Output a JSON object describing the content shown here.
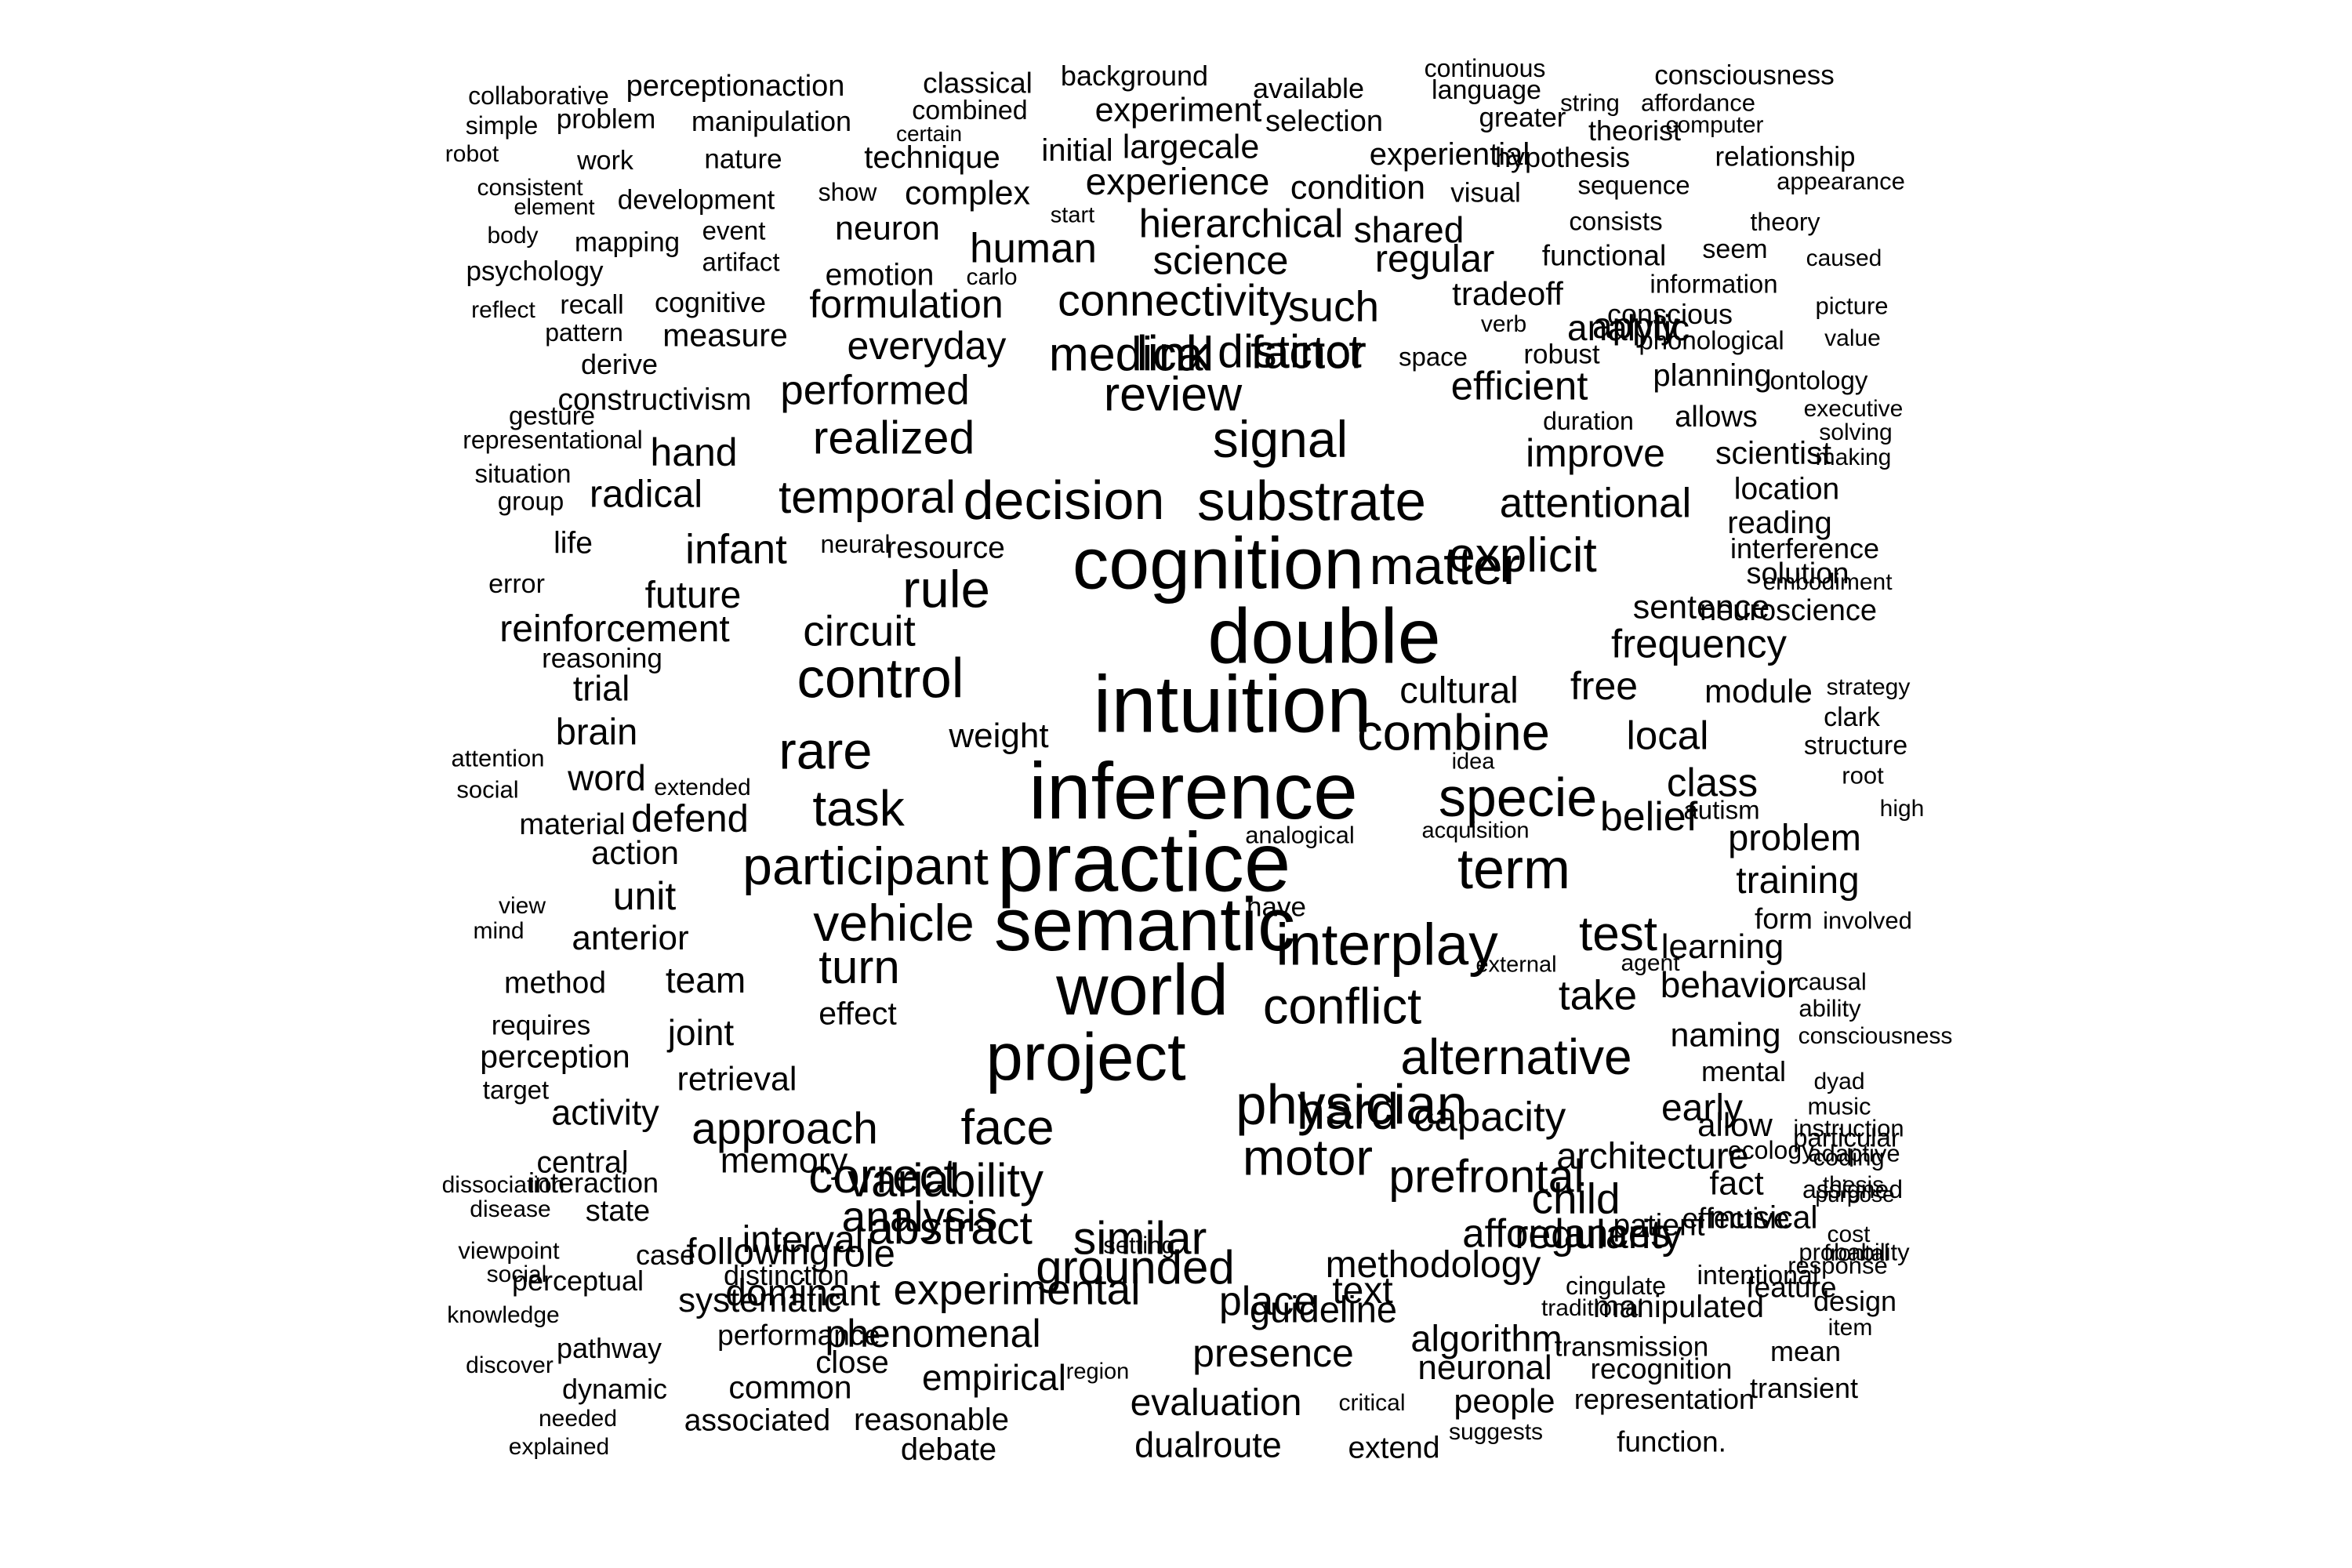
{
  "words": [
    "collaborative",
    "perceptionaction",
    "classical",
    "background",
    "available",
    "continuous",
    "consciousness",
    "simple",
    "problem",
    "manipulation",
    "combined",
    "experiment",
    "selection",
    "language",
    "string",
    "affordance",
    "certain",
    "greater",
    "theorist",
    "computer",
    "robot",
    "work",
    "nature",
    "technique",
    "initial",
    "largecale",
    "experiential",
    "hypothesis",
    "relationship",
    "consistent",
    "show",
    "complex",
    "experience",
    "condition",
    "visual",
    "sequence",
    "appearance",
    "element",
    "development",
    "body",
    "mapping",
    "event",
    "neuron",
    "start",
    "hierarchical",
    "shared",
    "consists",
    "theory",
    "human",
    "science",
    "regular",
    "functional",
    "seem",
    "caused",
    "psychology",
    "artifact",
    "emotion",
    "carlo",
    "information",
    "reflect",
    "recall",
    "cognitive",
    "formulation",
    "connectivity",
    "such",
    "tradeoff",
    "conscious",
    "picture",
    "pattern",
    "measure",
    "everyday",
    "link",
    "factor",
    "verb",
    "analytic",
    "apply",
    "phonological",
    "value",
    "derive",
    "medical",
    "distinct",
    "space",
    "robust",
    "planning",
    "ontology",
    "constructivism",
    "performed",
    "review",
    "efficient",
    "duration",
    "allows",
    "executive",
    "gesture",
    "representational",
    "realized",
    "signal",
    "solving",
    "hand",
    "improve",
    "scientist",
    "making",
    "situation",
    "group",
    "radical",
    "temporal",
    "decision",
    "substrate",
    "attentional",
    "location",
    "reading",
    "life",
    "infant",
    "neural",
    "resource",
    "rule",
    "cognition",
    "matter",
    "explicit",
    "interference",
    "error",
    "future",
    "solution",
    "embodiment",
    "reinforcement",
    "circuit",
    "double",
    "sentence",
    "neuroscience",
    "reasoning",
    "frequency",
    "trial",
    "control",
    "cultural",
    "free",
    "module",
    "strategy",
    "brain",
    "intuition",
    "combine",
    "local",
    "clark",
    "weight",
    "structure",
    "attention",
    "rare",
    "idea",
    "social",
    "extended",
    "word",
    "inference",
    "specie",
    "class",
    "root",
    "task",
    "defend",
    "belief",
    "autism",
    "high",
    "material",
    "analogical",
    "acquisition",
    "problem",
    "action",
    "participant",
    "practice",
    "term",
    "training",
    "view",
    "unit",
    "have",
    "form",
    "involved",
    "mind",
    "vehicle",
    "semantic",
    "test",
    "anterior",
    "external",
    "agent",
    "learning",
    "interplay",
    "turn",
    "method",
    "team",
    "world",
    "take",
    "behavior",
    "causal",
    "effect",
    "conflict",
    "ability",
    "requires",
    "joint",
    "naming",
    "consciousness",
    "perception",
    "project",
    "alternative",
    "mental",
    "target",
    "dyad",
    "retrieval",
    "physician",
    "music",
    "instruction",
    "activity",
    "approach",
    "hard",
    "allow",
    "particular",
    "central",
    "memory",
    "face",
    "capacity",
    "early",
    "coding",
    "correct",
    "motor",
    "prefrontal",
    "architecture",
    "ecology",
    "adaptive",
    "dissociation",
    "interaction",
    "variability",
    "child",
    "effective",
    "purpose",
    "thesis",
    "analysis",
    "fact",
    "assigned",
    "disease",
    "state",
    "abstract",
    "affordances",
    "musical",
    "cost",
    "similar",
    "methodology",
    "following",
    "grounded",
    "regularity",
    "patient",
    "viewpoint",
    "probability",
    "interval",
    "role",
    "setting",
    "social",
    "case",
    "dominant",
    "cingulate",
    "distinction",
    "experimental",
    "feature",
    "response",
    "frontal",
    "text",
    "intentional",
    "perceptual",
    "guideline",
    "place",
    "design",
    "systematic",
    "knowledge",
    "traditional",
    "manipulated",
    "item",
    "performance",
    "phenomenal",
    "algorithm",
    "pathway",
    "transmission",
    "mean",
    "close",
    "discover",
    "presence",
    "neuronal",
    "recognition",
    "region",
    "empirical",
    "dynamic",
    "common",
    "transient",
    "evaluation",
    "critical",
    "people",
    "representation",
    "needed",
    "associated",
    "reasonable",
    "suggests",
    "explained",
    "dualroute",
    "extend",
    "function.",
    "debate"
  ]
}
